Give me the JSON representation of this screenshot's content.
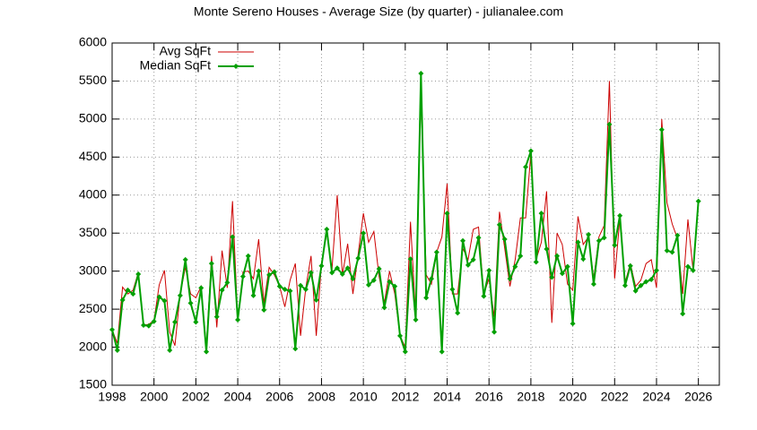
{
  "chart_data": {
    "type": "line",
    "title": "Monte Sereno Houses - Average Size (by quarter) - julianalee.com",
    "x": [
      1998,
      1998.25,
      1998.5,
      1998.75,
      1999,
      1999.25,
      1999.5,
      1999.75,
      2000,
      2000.25,
      2000.5,
      2000.75,
      2001,
      2001.25,
      2001.5,
      2001.75,
      2002,
      2002.25,
      2002.5,
      2002.75,
      2003,
      2003.25,
      2003.5,
      2003.75,
      2004,
      2004.25,
      2004.5,
      2004.75,
      2005,
      2005.25,
      2005.5,
      2005.75,
      2006,
      2006.25,
      2006.5,
      2006.75,
      2007,
      2007.25,
      2007.5,
      2007.75,
      2008,
      2008.25,
      2008.5,
      2008.75,
      2009,
      2009.25,
      2009.5,
      2009.75,
      2010,
      2010.25,
      2010.5,
      2010.75,
      2011,
      2011.25,
      2011.5,
      2011.75,
      2012,
      2012.25,
      2012.5,
      2012.75,
      2013,
      2013.25,
      2013.5,
      2013.75,
      2014,
      2014.25,
      2014.5,
      2014.75,
      2015,
      2015.25,
      2015.5,
      2015.75,
      2016,
      2016.25,
      2016.5,
      2016.75,
      2017,
      2017.25,
      2017.5,
      2017.75,
      2018,
      2018.25,
      2018.5,
      2018.75,
      2019,
      2019.25,
      2019.5,
      2019.75,
      2020,
      2020.25,
      2020.5,
      2020.75,
      2021,
      2021.25,
      2021.5,
      2021.75,
      2022,
      2022.25,
      2022.5,
      2022.75,
      2023,
      2023.25,
      2023.5,
      2023.75,
      2024,
      2024.25,
      2024.5,
      2024.75,
      2025,
      2025.25,
      2025.5,
      2025.75,
      2026
    ],
    "series": [
      {
        "name": "Avg SqFt",
        "color": "#cc0000",
        "markers": false,
        "values": [
          2230,
          2050,
          2790,
          2700,
          2750,
          2980,
          2290,
          2300,
          2350,
          2820,
          3010,
          2200,
          2020,
          2700,
          3050,
          2700,
          2650,
          2800,
          2000,
          3200,
          2260,
          3270,
          2780,
          3920,
          2350,
          2990,
          3000,
          2900,
          3420,
          2580,
          3050,
          2950,
          2800,
          2530,
          2880,
          3100,
          2150,
          2780,
          3200,
          2150,
          3100,
          3500,
          3020,
          4000,
          2950,
          3360,
          2700,
          3220,
          3760,
          3380,
          3520,
          2930,
          2580,
          3000,
          2700,
          2150,
          2000,
          3650,
          2400,
          5350,
          2950,
          2830,
          3250,
          3450,
          4150,
          2700,
          2700,
          3300,
          3150,
          3550,
          3580,
          2700,
          2900,
          2400,
          3780,
          3300,
          2800,
          3150,
          3700,
          3700,
          4550,
          3150,
          3380,
          4050,
          2320,
          3500,
          3350,
          2830,
          2750,
          3720,
          3350,
          3450,
          2900,
          3450,
          3600,
          5500,
          2900,
          3700,
          2850,
          3100,
          2800,
          2880,
          3100,
          3150,
          2780,
          5000,
          3900,
          3620,
          3430,
          2700,
          3680,
          3000,
          3870
        ]
      },
      {
        "name": "Median SqFt",
        "color": "#00a000",
        "markers": true,
        "values": [
          2230,
          1960,
          2620,
          2750,
          2700,
          2960,
          2290,
          2280,
          2340,
          2660,
          2610,
          1960,
          2330,
          2680,
          3150,
          2580,
          2330,
          2780,
          1940,
          3100,
          2400,
          2750,
          2850,
          3450,
          2360,
          2930,
          3200,
          2680,
          3000,
          2490,
          2950,
          2990,
          2800,
          2760,
          2740,
          1980,
          2810,
          2760,
          2980,
          2620,
          3070,
          3550,
          2980,
          3040,
          2960,
          3040,
          2900,
          3170,
          3500,
          2820,
          2880,
          3030,
          2520,
          2860,
          2800,
          2150,
          1940,
          3160,
          2360,
          5600,
          2650,
          2900,
          3250,
          1940,
          3760,
          2760,
          2450,
          3400,
          3080,
          3150,
          3440,
          2670,
          3010,
          2200,
          3610,
          3420,
          2900,
          3060,
          3200,
          4370,
          4580,
          3120,
          3760,
          3290,
          2920,
          3200,
          2970,
          3060,
          2310,
          3380,
          3160,
          3480,
          2830,
          3400,
          3440,
          4930,
          3340,
          3730,
          2810,
          3070,
          2740,
          2810,
          2860,
          2890,
          3010,
          4860,
          3270,
          3250,
          3470,
          2440,
          3060,
          3010,
          3920
        ]
      }
    ],
    "xlim": [
      1998,
      2027
    ],
    "xticks": [
      1998,
      2000,
      2002,
      2004,
      2006,
      2008,
      2010,
      2012,
      2014,
      2016,
      2018,
      2020,
      2022,
      2024,
      2026
    ],
    "ylim": [
      1500,
      6000
    ],
    "yticks": [
      1500,
      2000,
      2500,
      3000,
      3500,
      4000,
      4500,
      5000,
      5500,
      6000
    ],
    "grid": true,
    "legend": "top-left"
  }
}
